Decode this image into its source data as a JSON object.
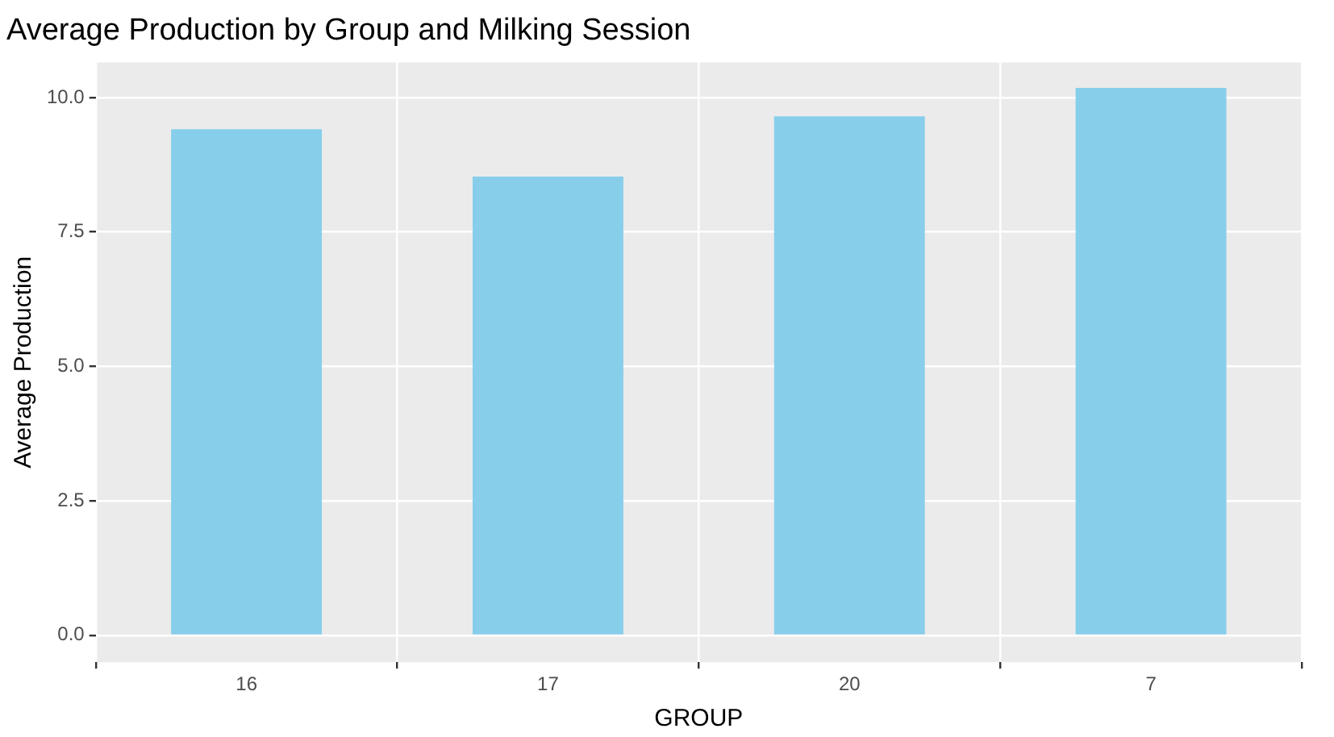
{
  "chart_data": {
    "type": "bar",
    "title": "Average Production by Group and Milking Session",
    "xlabel": "GROUP",
    "ylabel": "Average Production",
    "categories": [
      "16",
      "17",
      "20",
      "7"
    ],
    "values": [
      9.41,
      8.53,
      9.65,
      10.18
    ],
    "color": "#87ceeb",
    "ylim": [
      -0.5,
      10.65
    ],
    "yticks": [
      {
        "value": 0,
        "label": "0.0"
      },
      {
        "value": 2.5,
        "label": "2.5"
      },
      {
        "value": 5,
        "label": "5.0"
      },
      {
        "value": 7.5,
        "label": "7.5"
      },
      {
        "value": 10,
        "label": "10.0"
      }
    ],
    "grid": true
  }
}
